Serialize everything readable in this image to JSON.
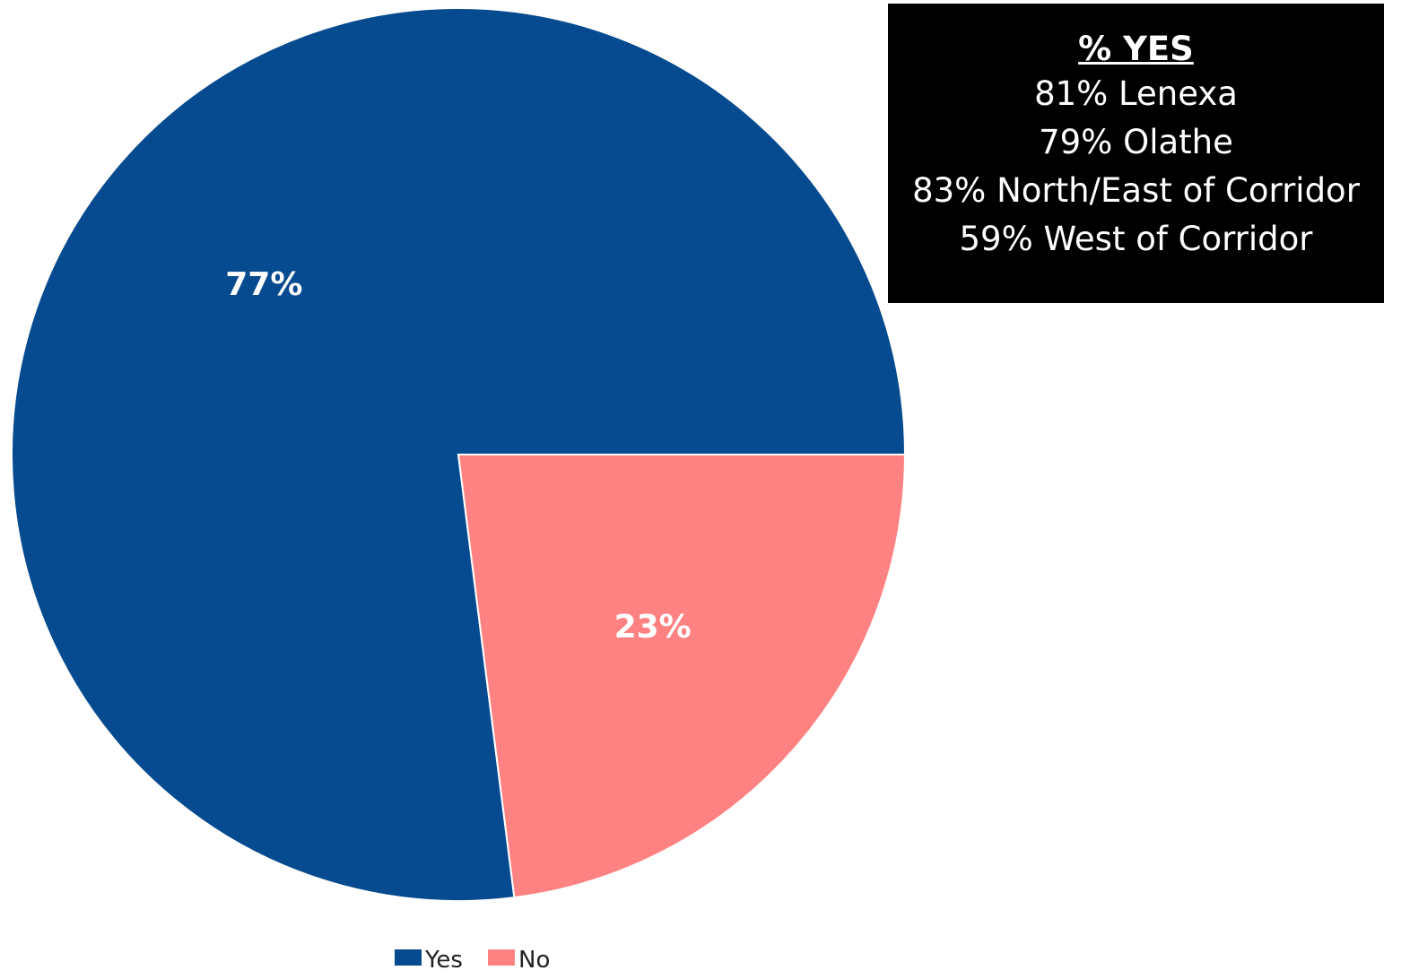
{
  "chart_data": {
    "type": "pie",
    "categories": [
      "Yes",
      "No"
    ],
    "values": [
      77,
      23
    ],
    "data_labels": [
      "77%",
      "23%"
    ],
    "colors": [
      "#064a8f",
      "#ff8282"
    ],
    "legend": {
      "placement": "bottom",
      "entries": [
        "Yes",
        "No"
      ]
    },
    "title": ""
  },
  "info_box": {
    "title": "% YES",
    "lines": [
      "81% Lenexa",
      "79% Olathe",
      "83% North/East of Corridor",
      "59% West of Corridor"
    ]
  }
}
